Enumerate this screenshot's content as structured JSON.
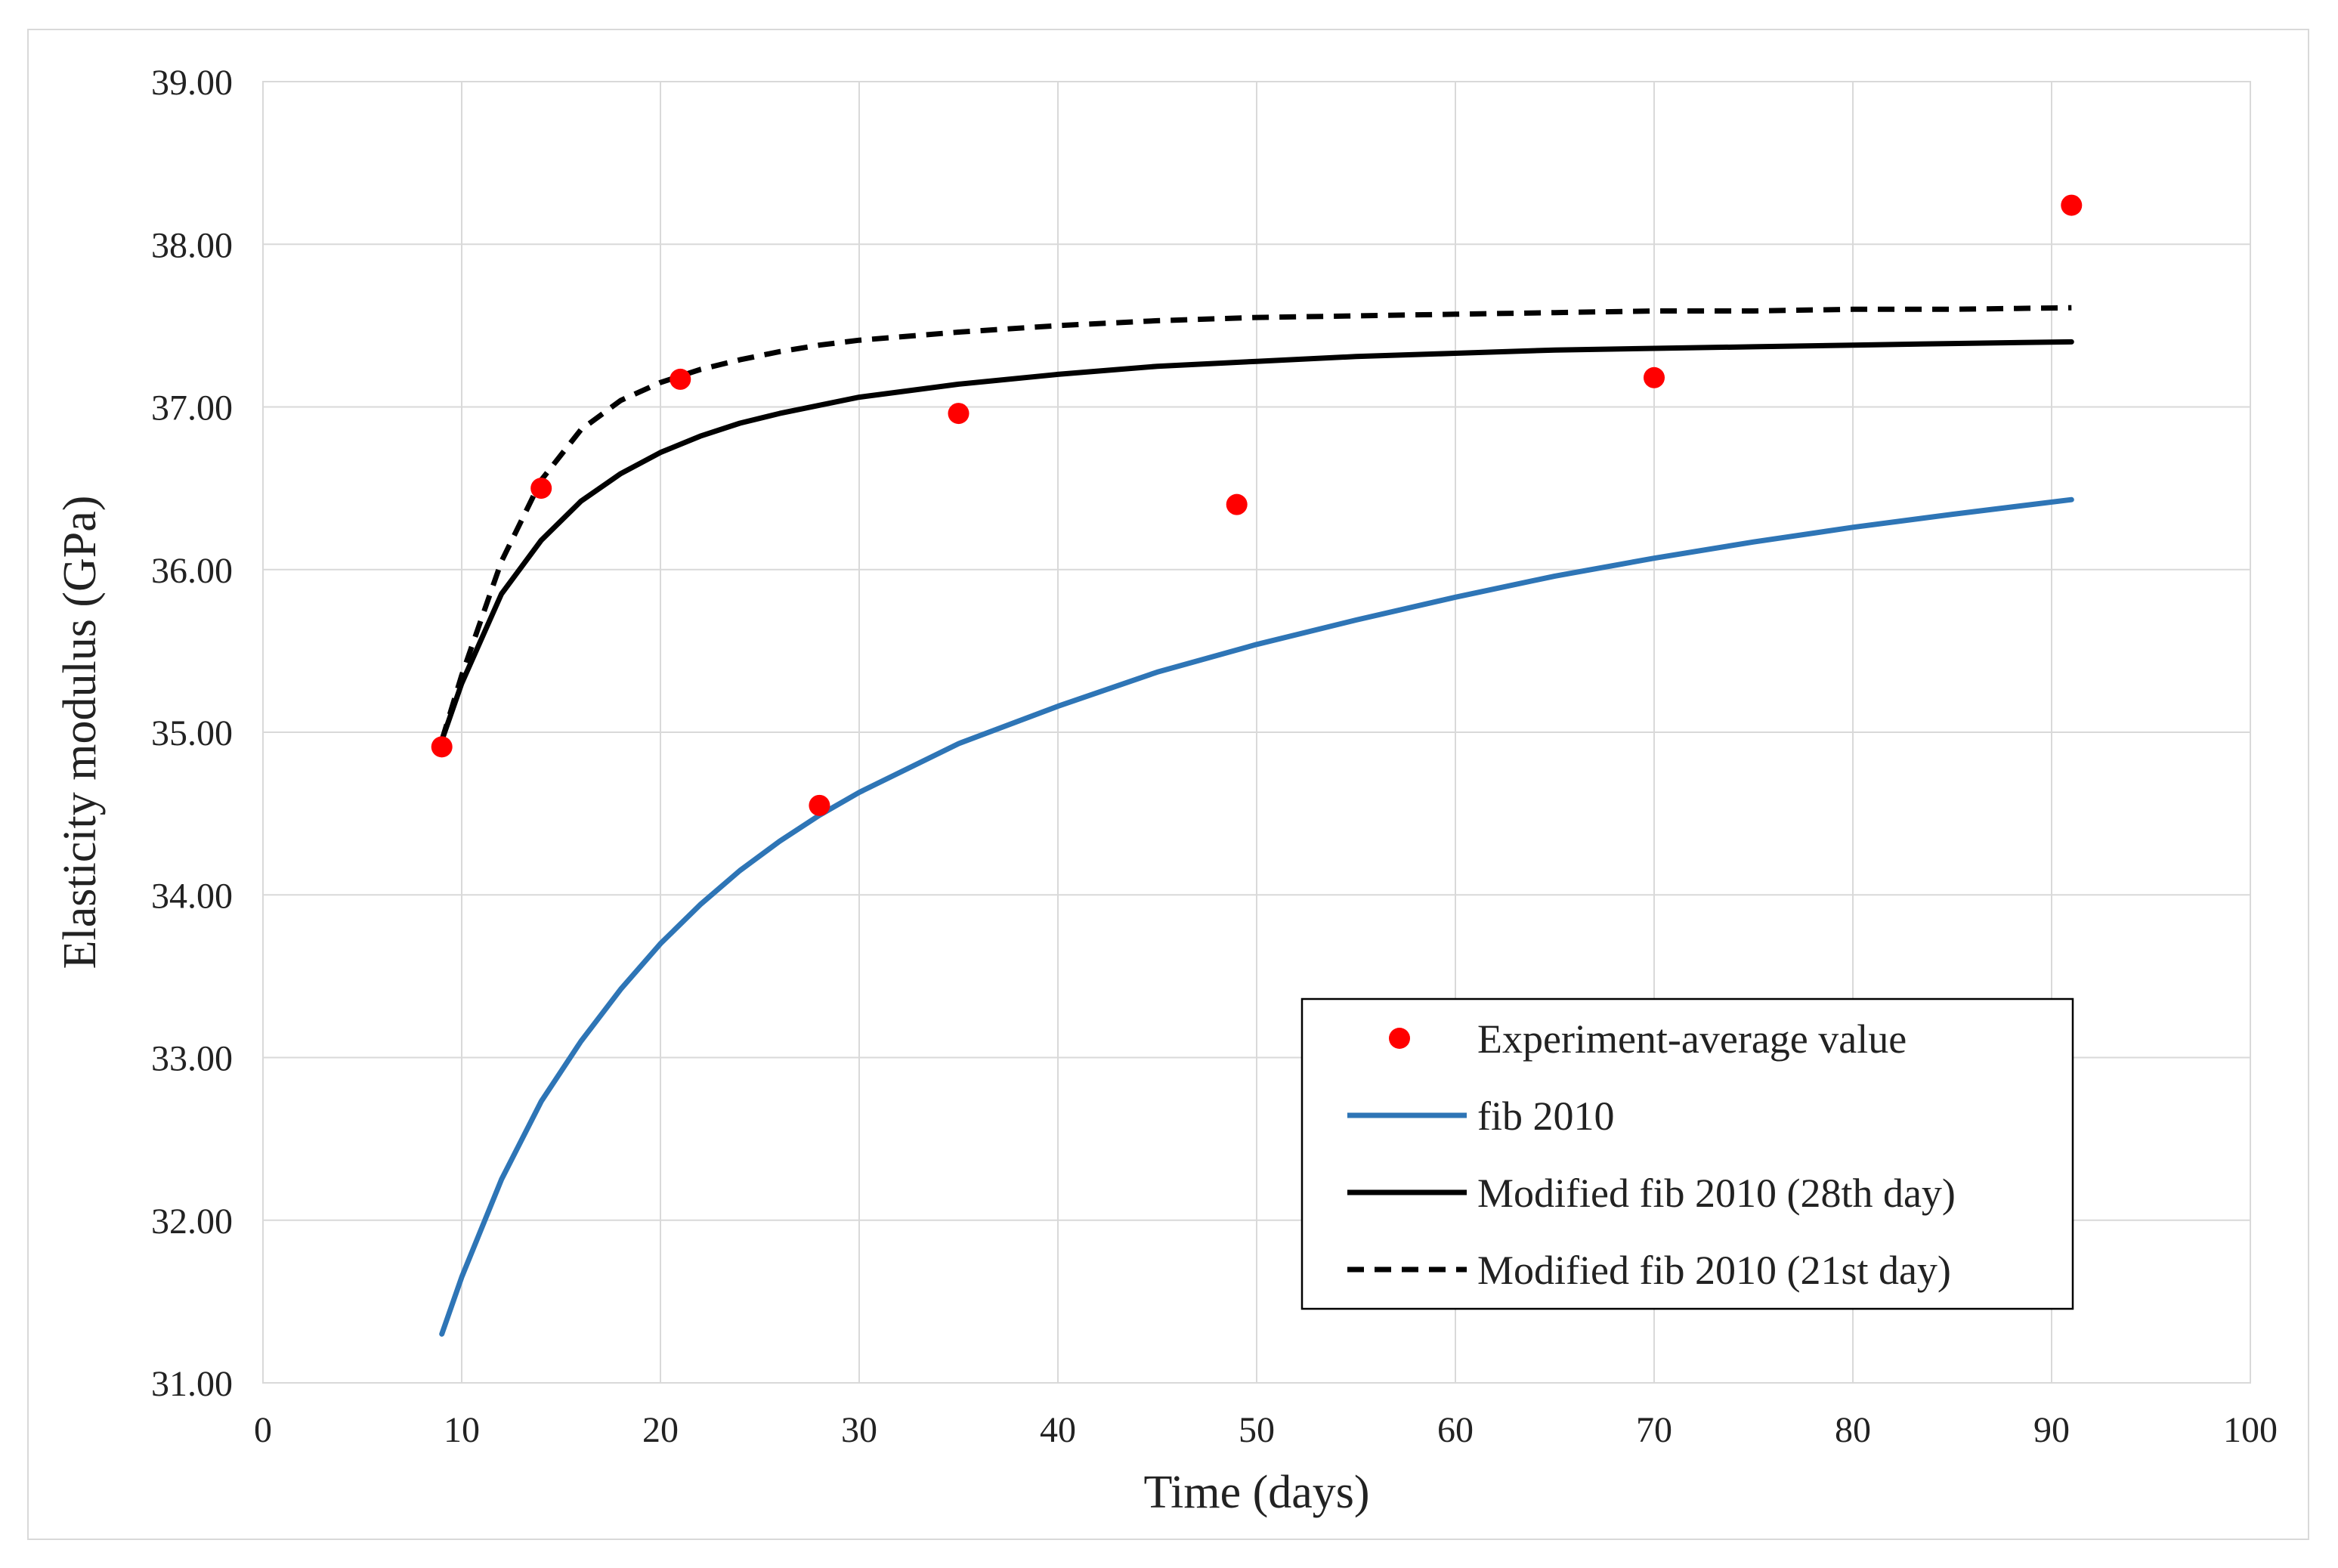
{
  "chart_data": {
    "type": "line",
    "title": "",
    "xlabel": "Time (days)",
    "ylabel": "Elasticity modulus (GPa)",
    "xlim": [
      0,
      100
    ],
    "ylim": [
      31,
      39
    ],
    "x_ticks": [
      0,
      10,
      20,
      30,
      40,
      50,
      60,
      70,
      80,
      90,
      100
    ],
    "x_tick_labels": [
      "0",
      "10",
      "20",
      "30",
      "40",
      "50",
      "60",
      "70",
      "80",
      "90",
      "100"
    ],
    "y_ticks": [
      31,
      32,
      33,
      34,
      35,
      36,
      37,
      38,
      39
    ],
    "y_tick_labels": [
      "31.00",
      "32.00",
      "33.00",
      "34.00",
      "35.00",
      "36.00",
      "37.00",
      "38.00",
      "39.00"
    ],
    "grid": true,
    "legend_position": "bottom-right",
    "series": [
      {
        "name": "Experiment-average value",
        "kind": "scatter",
        "color": "#ff0000",
        "x": [
          9,
          14,
          21,
          28,
          35,
          49,
          70,
          91
        ],
        "y": [
          34.91,
          36.5,
          37.17,
          34.55,
          36.96,
          36.4,
          37.18,
          38.24
        ]
      },
      {
        "name": "fib 2010",
        "kind": "line",
        "style": "solid",
        "color": "#2e75b6",
        "x": [
          9,
          10,
          12,
          14,
          16,
          18,
          20,
          22,
          24,
          26,
          28,
          30,
          35,
          40,
          45,
          50,
          55,
          60,
          65,
          70,
          75,
          80,
          85,
          91
        ],
        "y": [
          31.3,
          31.65,
          32.25,
          32.73,
          33.1,
          33.42,
          33.7,
          33.94,
          34.15,
          34.33,
          34.49,
          34.63,
          34.93,
          35.16,
          35.37,
          35.54,
          35.69,
          35.83,
          35.96,
          36.07,
          36.17,
          36.26,
          36.34,
          36.43
        ]
      },
      {
        "name": "Modified fib 2010 (28th day)",
        "kind": "line",
        "style": "solid",
        "color": "#000000",
        "x": [
          9,
          10,
          12,
          14,
          16,
          18,
          20,
          22,
          24,
          26,
          28,
          30,
          35,
          40,
          45,
          50,
          55,
          60,
          65,
          70,
          75,
          80,
          85,
          91
        ],
        "y": [
          34.95,
          35.3,
          35.85,
          36.18,
          36.42,
          36.59,
          36.72,
          36.82,
          36.9,
          36.96,
          37.01,
          37.06,
          37.14,
          37.2,
          37.25,
          37.28,
          37.31,
          37.33,
          37.35,
          37.36,
          37.37,
          37.38,
          37.39,
          37.4
        ]
      },
      {
        "name": "Modified fib 2010 (21st day)",
        "kind": "line",
        "style": "dashed",
        "color": "#000000",
        "x": [
          9,
          10,
          12,
          14,
          16,
          18,
          20,
          22,
          24,
          26,
          28,
          30,
          35,
          40,
          45,
          50,
          55,
          60,
          65,
          70,
          75,
          80,
          85,
          91
        ],
        "y": [
          34.95,
          35.35,
          36.05,
          36.55,
          36.86,
          37.04,
          37.15,
          37.23,
          37.29,
          37.34,
          37.38,
          37.41,
          37.46,
          37.5,
          37.53,
          37.55,
          37.56,
          37.57,
          37.58,
          37.59,
          37.59,
          37.6,
          37.6,
          37.61
        ]
      }
    ]
  }
}
